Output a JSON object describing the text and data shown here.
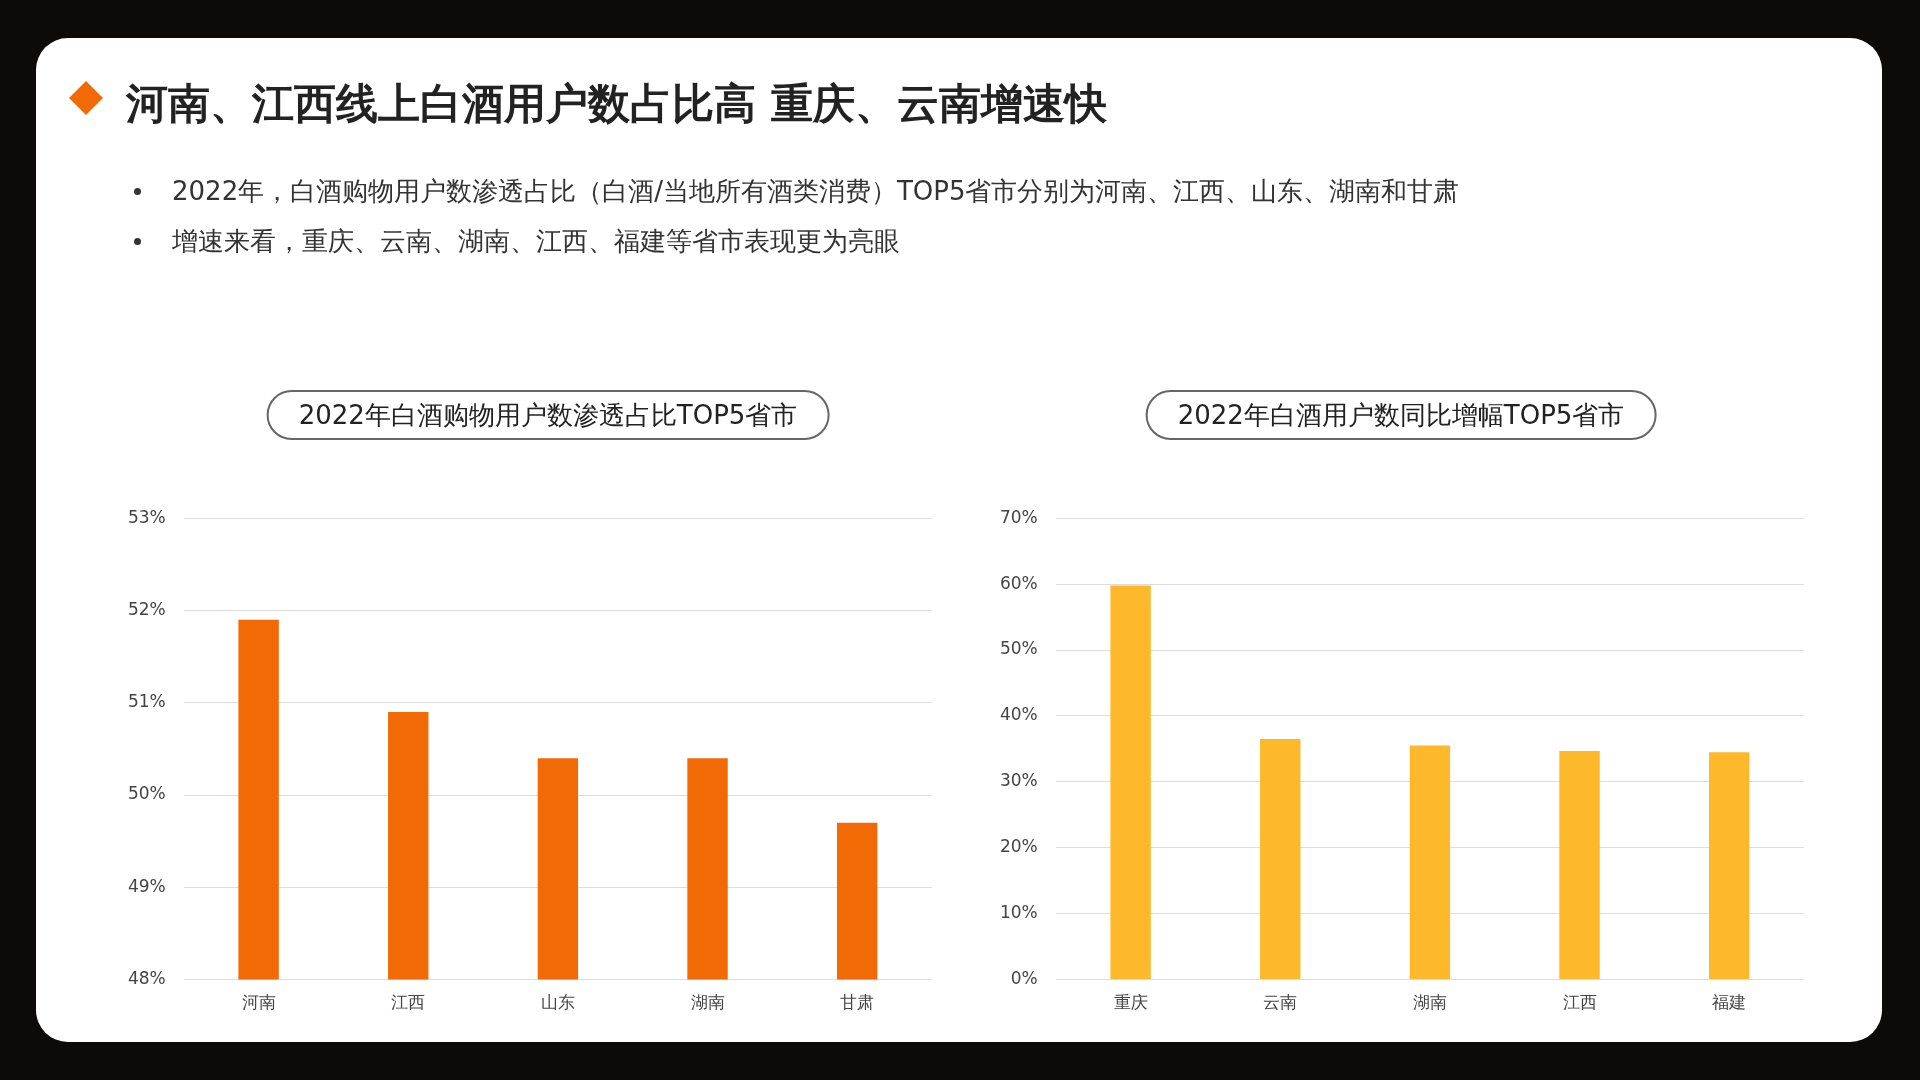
{
  "chart_data": [
    {
      "type": "bar",
      "title": "2022年白酒购物用户数渗透占比TOP5省市",
      "annotations": [
        "河南、江西线上白酒用户数占比高 重庆、云南增速快",
        "2022年，白酒购物用户数渗透占比（白酒/当地所有酒类消费）TOP5省市分别为河南、江西、山东、湖南和甘肃",
        "增速来看，重庆、云南、湖南、江西、福建等省市表现更为亮眼"
      ],
      "categories": [
        "河南",
        "江西",
        "山东",
        "湖南",
        "甘肃"
      ],
      "values": [
        51.9,
        50.9,
        50.4,
        50.4,
        49.7
      ],
      "color": "#f26a05",
      "ylim": [
        48,
        53
      ],
      "yticks": [
        {
          "value": 48,
          "label": "48%"
        },
        {
          "value": 49,
          "label": "49%"
        },
        {
          "value": 50,
          "label": "50%"
        },
        {
          "value": 51,
          "label": "51%"
        },
        {
          "value": 52,
          "label": "52%"
        },
        {
          "value": 53,
          "label": "53%"
        }
      ],
      "grid": "y"
    },
    {
      "type": "bar",
      "title": "2022年白酒用户数同比增幅TOP5省市",
      "categories": [
        "重庆",
        "云南",
        "湖南",
        "江西",
        "福建"
      ],
      "values": [
        59.8,
        36.5,
        35.5,
        34.7,
        34.5
      ],
      "color": "#fdb82c",
      "ylim": [
        0,
        70
      ],
      "yticks": [
        {
          "value": 0,
          "label": "0%"
        },
        {
          "value": 10,
          "label": "10%"
        },
        {
          "value": 20,
          "label": "20%"
        },
        {
          "value": 30,
          "label": "30%"
        },
        {
          "value": 40,
          "label": "40%"
        },
        {
          "value": 50,
          "label": "50%"
        },
        {
          "value": 60,
          "label": "60%"
        },
        {
          "value": 70,
          "label": "70%"
        }
      ],
      "grid": "y"
    }
  ]
}
